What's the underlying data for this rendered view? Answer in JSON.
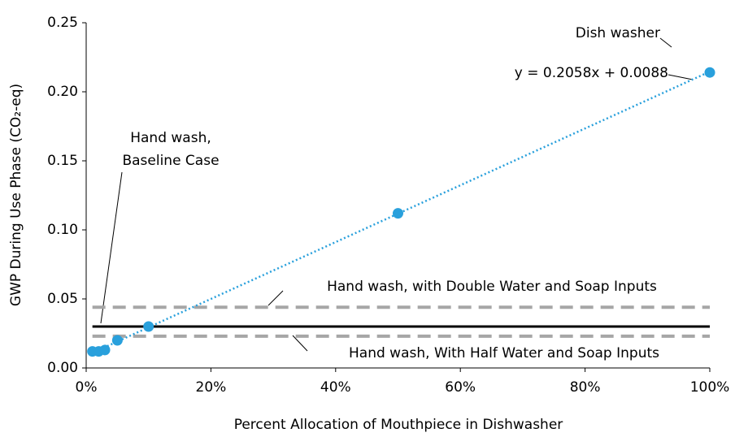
{
  "chart_data": {
    "type": "scatter",
    "x_label": "Percent Allocation of Mouthpiece in Dishwasher",
    "y_label": "GWP During Use Phase (CO₂-eq)",
    "xlim": [
      0,
      100
    ],
    "xticks": [
      {
        "value": 0,
        "label": "0%"
      },
      {
        "value": 20,
        "label": "20%"
      },
      {
        "value": 40,
        "label": "40%"
      },
      {
        "value": 60,
        "label": "60%"
      },
      {
        "value": 80,
        "label": "80%"
      },
      {
        "value": 100,
        "label": "100%"
      }
    ],
    "ylim": [
      0,
      0.25
    ],
    "yticks": [
      {
        "value": 0,
        "label": "0.00"
      },
      {
        "value": 0.05,
        "label": "0.05"
      },
      {
        "value": 0.1,
        "label": "0.10"
      },
      {
        "value": 0.15,
        "label": "0.15"
      },
      {
        "value": 0.2,
        "label": "0.20"
      },
      {
        "value": 0.25,
        "label": "0.25"
      }
    ],
    "grid": false,
    "series": [
      {
        "name": "Dish washer",
        "color": "#29a0dc",
        "x": [
          1,
          2,
          3,
          5,
          10,
          50,
          100
        ],
        "values": [
          0.012,
          0.012,
          0.013,
          0.02,
          0.03,
          0.112,
          0.214
        ]
      }
    ],
    "trendline": {
      "label": "y = 0.2058x + 0.0088",
      "color": "#29a0dc",
      "x": [
        1,
        100
      ],
      "values": [
        0.0109,
        0.2146
      ]
    },
    "reference_lines": [
      {
        "label": [
          "Hand wash,",
          "Baseline Case"
        ],
        "value": 0.03,
        "xrange": [
          1,
          100
        ],
        "color": "#000000",
        "dashed": false
      },
      {
        "label": [
          "Hand wash, with Double Water and Soap Inputs"
        ],
        "value": 0.044,
        "xrange": [
          1,
          100
        ],
        "color": "#a6a6a6",
        "dashed": true
      },
      {
        "label": [
          "Hand wash, With Half Water and Soap Inputs"
        ],
        "value": 0.023,
        "xrange": [
          1,
          100
        ],
        "color": "#a6a6a6",
        "dashed": true
      }
    ]
  }
}
